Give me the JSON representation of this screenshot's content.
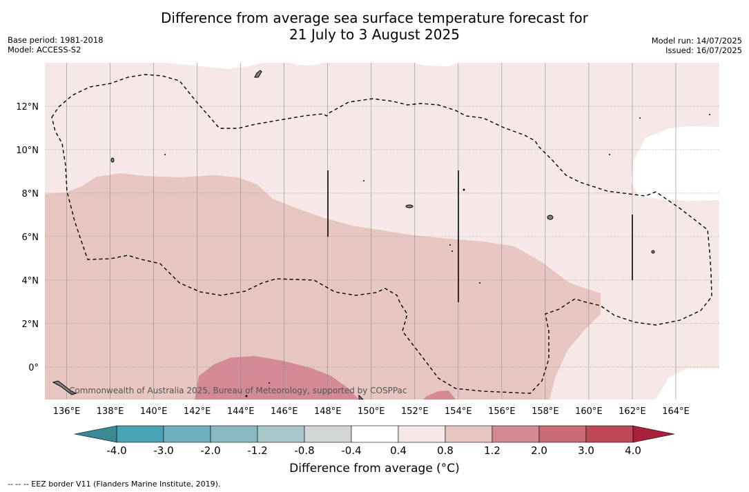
{
  "title_line1": "Difference from average sea surface temperature forecast for",
  "title_line2": "21 July to 3 August 2025",
  "meta_left": {
    "base_period": "Base period: 1981-2018",
    "model": "Model: ACCESS-S2"
  },
  "meta_right": {
    "model_run": "Model run: 14/07/2025",
    "issued": "Issued: 16/07/2025"
  },
  "map": {
    "lon_range": [
      135,
      166
    ],
    "lat_range": [
      -1.5,
      14
    ],
    "lon_ticks": [
      "136°E",
      "138°E",
      "140°E",
      "142°E",
      "144°E",
      "146°E",
      "148°E",
      "150°E",
      "152°E",
      "154°E",
      "156°E",
      "158°E",
      "160°E",
      "162°E",
      "164°E"
    ],
    "lat_ticks": [
      "0°",
      "2°N",
      "4°N",
      "6°N",
      "8°N",
      "10°N",
      "12°N"
    ],
    "copyright": "Commonwealth of Australia 2025, Bureau of Meteorology, supported by COSPPac",
    "colors": {
      "band_04_08": "#f5e8e6",
      "band_08_12": "#e7c5c1",
      "band_12_20": "#d48a94",
      "band_20_30": "#c96b74",
      "land": "#808080",
      "eez": "#000000"
    }
  },
  "colorbar": {
    "title": "Difference from average (°C)",
    "tick_labels": [
      "-4.0",
      "-3.0",
      "-2.0",
      "-1.2",
      "-0.8",
      "-0.4",
      "0.4",
      "0.8",
      "1.2",
      "2.0",
      "3.0",
      "4.0"
    ],
    "under_color": "#3a8a96",
    "over_color": "#a9203a",
    "band_colors": [
      "#4aa3b4",
      "#6fb0bf",
      "#8ab8c4",
      "#a9c8cc",
      "#d2d6d6",
      "#ffffff",
      "#f5e8e6",
      "#e7c5c1",
      "#d48a94",
      "#c96b74",
      "#bd4957"
    ]
  },
  "footnote": "--  --  -- EEZ border V11 (Flanders Marine Institute, 2019)."
}
